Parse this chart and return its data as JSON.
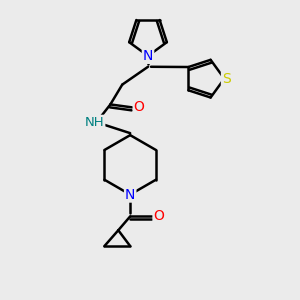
{
  "background_color": "#ebebeb",
  "atom_colors": {
    "N": "#0000ff",
    "O": "#ff0000",
    "S": "#cccc00",
    "C": "#000000",
    "H": "#008080"
  },
  "bond_color": "#000000",
  "bond_width": 1.8,
  "figsize": [
    3.0,
    3.0
  ],
  "dpi": 100
}
